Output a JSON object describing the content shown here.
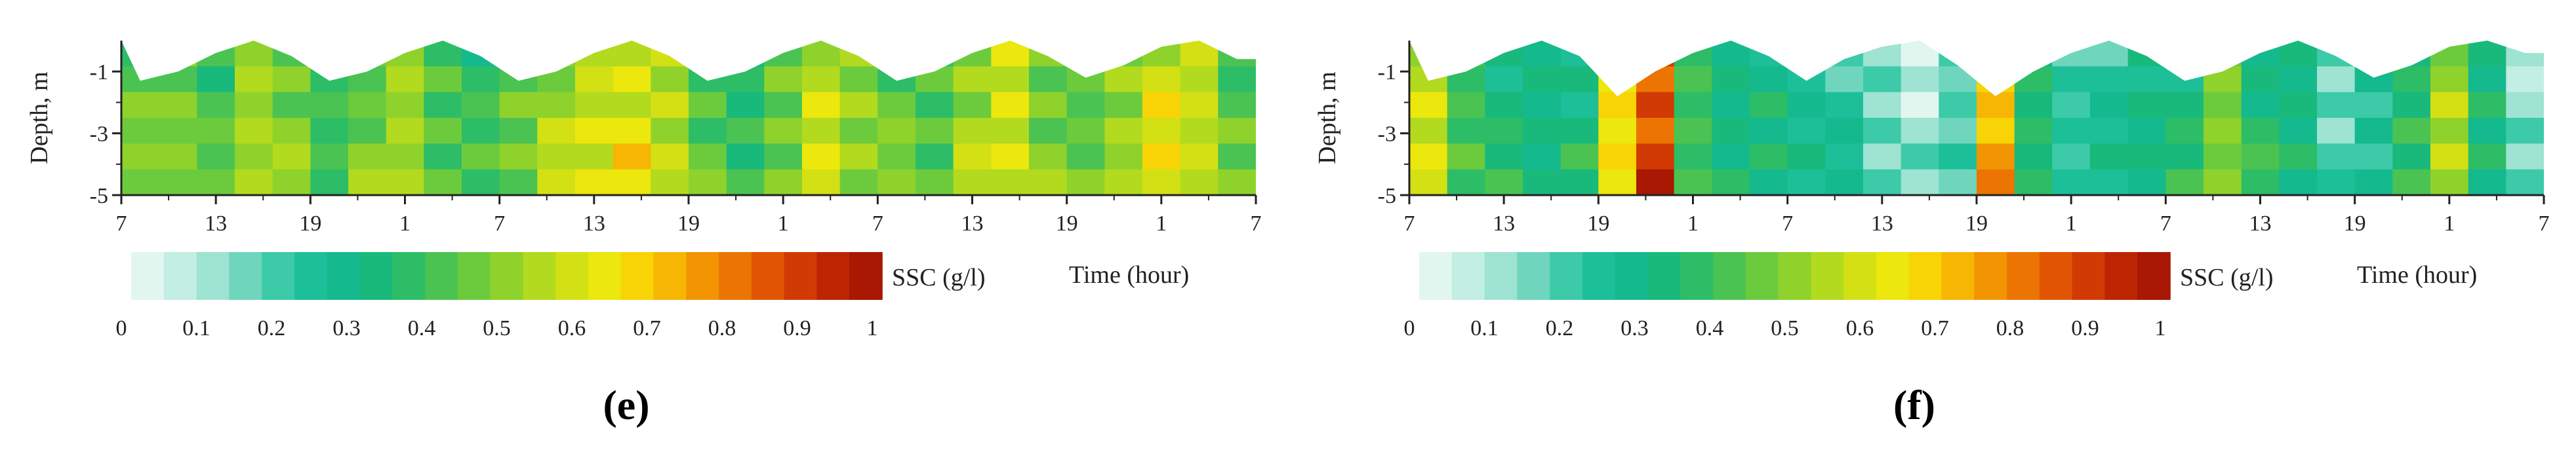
{
  "colors": {
    "colorbar": [
      "#e2f6f0",
      "#c3eee3",
      "#9fe3d2",
      "#6fd6bd",
      "#3ccaa8",
      "#1dbf99",
      "#14b98e",
      "#19b97c",
      "#2dbd66",
      "#4bc352",
      "#6ccb3d",
      "#8fd22c",
      "#b2da1f",
      "#d3e014",
      "#ece70c",
      "#f8d407",
      "#f7b504",
      "#f39403",
      "#ec7402",
      "#e15502",
      "#d13a02",
      "#bd2502",
      "#a81803"
    ],
    "wave_fill": "#ffffff",
    "axis": "#222222"
  },
  "panels": [
    {
      "label": "(e)",
      "title_y": "Depth, m",
      "colorbar_label": "SSC (g/l)",
      "time_label": "Time (hour)",
      "chart_data": {
        "type": "heatmap",
        "ylabel": "Depth, m",
        "xlabel": "Time (hour)",
        "colorbar_label": "SSC (g/l)",
        "x_ticks": [
          "7",
          "13",
          "19",
          "1",
          "7",
          "13",
          "19",
          "1",
          "7",
          "13",
          "19",
          "1",
          "7"
        ],
        "y_ticks": [
          "-1",
          "-3",
          "-5"
        ],
        "ylim": [
          -5,
          0
        ],
        "colorbar_ticks": [
          "0",
          "0.1",
          "0.2",
          "0.3",
          "0.4",
          "0.5",
          "0.6",
          "0.7",
          "0.8",
          "0.9",
          "1"
        ],
        "colorbar_range": [
          0,
          1
        ],
        "ssc_profile_g_per_l": [
          0.42,
          0.45,
          0.38,
          0.5,
          0.46,
          0.36,
          0.44,
          0.48,
          0.41,
          0.35,
          0.43,
          0.5,
          0.55,
          0.6,
          0.52,
          0.4,
          0.32,
          0.45,
          0.55,
          0.48,
          0.42,
          0.38,
          0.5,
          0.56,
          0.45,
          0.4,
          0.5,
          0.58,
          0.55,
          0.4
        ],
        "surface_level_m": [
          -1.3,
          -1.0,
          -0.4,
          0,
          -0.5,
          -1.3,
          -1.0,
          -0.4,
          0,
          -0.5,
          -1.3,
          -1.0,
          -0.4,
          0,
          -0.5,
          -1.3,
          -1.0,
          -0.4,
          0,
          -0.5,
          -1.3,
          -1.0,
          -0.4,
          0,
          -0.5,
          -1.2,
          -0.8,
          -0.2,
          0,
          -0.6
        ]
      }
    },
    {
      "label": "(f)",
      "title_y": "Depth, m",
      "colorbar_label": "SSC (g/l)",
      "time_label": "Time (hour)",
      "chart_data": {
        "type": "heatmap",
        "ylabel": "Depth, m",
        "xlabel": "Time (hour)",
        "colorbar_label": "SSC (g/l)",
        "x_ticks": [
          "7",
          "13",
          "19",
          "1",
          "7",
          "13",
          "19",
          "1",
          "7",
          "13",
          "19",
          "1",
          "7"
        ],
        "y_ticks": [
          "-1",
          "-3",
          "-5"
        ],
        "ylim": [
          -5,
          0
        ],
        "colorbar_ticks": [
          "0",
          "0.1",
          "0.2",
          "0.3",
          "0.4",
          "0.5",
          "0.6",
          "0.7",
          "0.8",
          "0.9",
          "1"
        ],
        "colorbar_range": [
          0,
          1
        ],
        "ssc_profile_g_per_l": [
          0.55,
          0.38,
          0.3,
          0.28,
          0.3,
          0.62,
          0.85,
          0.35,
          0.3,
          0.28,
          0.25,
          0.2,
          0.12,
          0.08,
          0.15,
          0.7,
          0.3,
          0.2,
          0.22,
          0.28,
          0.3,
          0.45,
          0.32,
          0.28,
          0.15,
          0.2,
          0.35,
          0.5,
          0.3,
          0.1
        ],
        "surface_level_m": [
          -1.3,
          -1.0,
          -0.4,
          0,
          -0.5,
          -1.8,
          -1.0,
          -0.4,
          0,
          -0.5,
          -1.3,
          -0.6,
          -0.2,
          0,
          -0.8,
          -1.8,
          -1.0,
          -0.4,
          0,
          -0.5,
          -1.3,
          -1.0,
          -0.4,
          0,
          -0.5,
          -1.2,
          -0.8,
          -0.2,
          0,
          -0.4
        ]
      }
    }
  ]
}
